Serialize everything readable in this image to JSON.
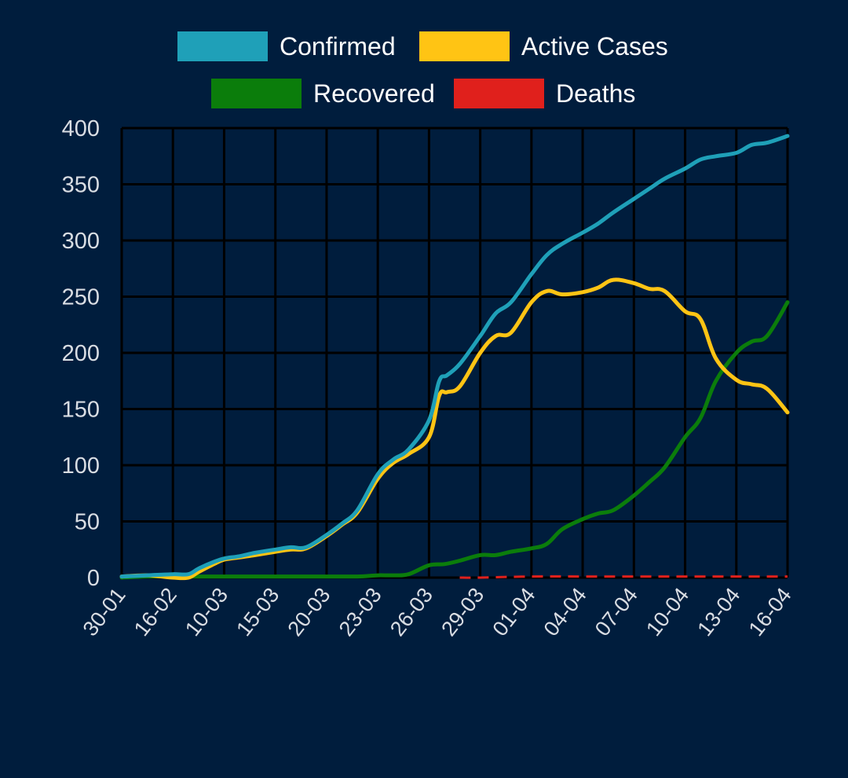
{
  "colors": {
    "background": "#001d3d",
    "grid": "#000000",
    "confirmed": "#1fa0b8",
    "active": "#ffc414",
    "recovered": "#0b7d0b",
    "deaths": "#e0201c",
    "tick_text": "#d9dde3",
    "legend_text": "#ffffff"
  },
  "chart_data": {
    "type": "line",
    "title": "",
    "xlabel": "",
    "ylabel": "",
    "ylim": [
      0,
      400
    ],
    "yticks": [
      0,
      50,
      100,
      150,
      200,
      250,
      300,
      350,
      400
    ],
    "xticks": [
      "30-01",
      "16-02",
      "10-03",
      "15-03",
      "20-03",
      "23-03",
      "26-03",
      "29-03",
      "01-04",
      "04-04",
      "07-04",
      "10-04",
      "13-04",
      "16-04"
    ],
    "grid": true,
    "legend_position": "top-center",
    "x_domain": [
      0,
      13
    ],
    "series": [
      {
        "name": "Confirmed",
        "color": "#1fa0b8",
        "style": "solid",
        "points": [
          [
            0,
            1
          ],
          [
            0.5,
            2
          ],
          [
            1,
            3
          ],
          [
            1.3,
            3
          ],
          [
            1.5,
            8
          ],
          [
            1.8,
            14
          ],
          [
            2,
            17
          ],
          [
            2.3,
            19
          ],
          [
            2.6,
            22
          ],
          [
            3,
            25
          ],
          [
            3.3,
            27
          ],
          [
            3.6,
            27
          ],
          [
            4,
            38
          ],
          [
            4.3,
            48
          ],
          [
            4.6,
            60
          ],
          [
            5,
            92
          ],
          [
            5.3,
            105
          ],
          [
            5.6,
            114
          ],
          [
            6,
            140
          ],
          [
            6.2,
            175
          ],
          [
            6.35,
            180
          ],
          [
            6.6,
            190
          ],
          [
            7,
            215
          ],
          [
            7.3,
            235
          ],
          [
            7.6,
            245
          ],
          [
            8,
            270
          ],
          [
            8.3,
            287
          ],
          [
            8.6,
            297
          ],
          [
            9,
            307
          ],
          [
            9.3,
            315
          ],
          [
            9.6,
            325
          ],
          [
            10,
            337
          ],
          [
            10.3,
            346
          ],
          [
            10.6,
            355
          ],
          [
            11,
            364
          ],
          [
            11.3,
            372
          ],
          [
            11.6,
            375
          ],
          [
            12,
            378
          ],
          [
            12.3,
            385
          ],
          [
            12.6,
            387
          ],
          [
            13,
            393
          ]
        ]
      },
      {
        "name": "Active Cases",
        "color": "#ffc414",
        "style": "solid",
        "points": [
          [
            0,
            1
          ],
          [
            0.5,
            2
          ],
          [
            1,
            0
          ],
          [
            1.3,
            0
          ],
          [
            1.5,
            5
          ],
          [
            1.8,
            12
          ],
          [
            2,
            16
          ],
          [
            2.3,
            18
          ],
          [
            2.6,
            20
          ],
          [
            3,
            23
          ],
          [
            3.3,
            25
          ],
          [
            3.6,
            26
          ],
          [
            4,
            37
          ],
          [
            4.3,
            47
          ],
          [
            4.6,
            58
          ],
          [
            5,
            88
          ],
          [
            5.3,
            102
          ],
          [
            5.6,
            110
          ],
          [
            6,
            125
          ],
          [
            6.2,
            162
          ],
          [
            6.35,
            165
          ],
          [
            6.6,
            170
          ],
          [
            7,
            200
          ],
          [
            7.3,
            215
          ],
          [
            7.6,
            218
          ],
          [
            8,
            245
          ],
          [
            8.3,
            255
          ],
          [
            8.6,
            252
          ],
          [
            9,
            254
          ],
          [
            9.3,
            258
          ],
          [
            9.6,
            265
          ],
          [
            10,
            262
          ],
          [
            10.3,
            257
          ],
          [
            10.6,
            255
          ],
          [
            11,
            237
          ],
          [
            11.3,
            230
          ],
          [
            11.6,
            195
          ],
          [
            12,
            176
          ],
          [
            12.3,
            172
          ],
          [
            12.6,
            168
          ],
          [
            13,
            147
          ]
        ]
      },
      {
        "name": "Recovered",
        "color": "#0b7d0b",
        "style": "solid",
        "points": [
          [
            0,
            0
          ],
          [
            0.5,
            1
          ],
          [
            1,
            1
          ],
          [
            1.5,
            1
          ],
          [
            2,
            1
          ],
          [
            3,
            1
          ],
          [
            4,
            1
          ],
          [
            4.6,
            1
          ],
          [
            5,
            2
          ],
          [
            5.3,
            2
          ],
          [
            5.6,
            3
          ],
          [
            6,
            11
          ],
          [
            6.3,
            12
          ],
          [
            6.6,
            15
          ],
          [
            7,
            20
          ],
          [
            7.3,
            20
          ],
          [
            7.6,
            23
          ],
          [
            8,
            26
          ],
          [
            8.3,
            30
          ],
          [
            8.6,
            43
          ],
          [
            9,
            52
          ],
          [
            9.3,
            57
          ],
          [
            9.6,
            60
          ],
          [
            10,
            73
          ],
          [
            10.3,
            85
          ],
          [
            10.6,
            98
          ],
          [
            11,
            125
          ],
          [
            11.3,
            142
          ],
          [
            11.6,
            175
          ],
          [
            12,
            200
          ],
          [
            12.3,
            210
          ],
          [
            12.6,
            215
          ],
          [
            13,
            245
          ]
        ]
      },
      {
        "name": "Deaths",
        "color": "#e0201c",
        "style": "dashed",
        "points": [
          [
            6.6,
            0
          ],
          [
            7,
            0
          ],
          [
            8,
            1
          ],
          [
            9,
            1
          ],
          [
            10,
            1
          ],
          [
            11,
            1
          ],
          [
            12,
            1
          ],
          [
            13,
            1
          ]
        ]
      }
    ]
  }
}
